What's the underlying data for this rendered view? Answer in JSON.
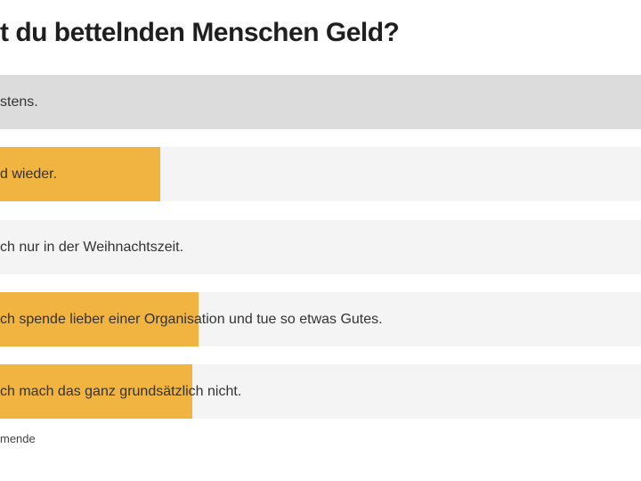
{
  "poll": {
    "question": "t du bettelnden Menschen Geld?",
    "options": [
      {
        "label": "stens.",
        "fill_percent": 0,
        "selected": true
      },
      {
        "label": "d wieder.",
        "fill_percent": 25
      },
      {
        "label": "ch nur in der Weihnachtszeit.",
        "fill_percent": 0
      },
      {
        "label": "ch spende lieber einer Organisation und tue so etwas Gutes.",
        "fill_percent": 31
      },
      {
        "label": "ch mach das ganz grundsätzlich nicht.",
        "fill_percent": 30
      }
    ],
    "footer": "mende"
  },
  "colors": {
    "fill": "#f2b441",
    "selected": "#dcdcdc",
    "bar": "#f4f4f4"
  }
}
